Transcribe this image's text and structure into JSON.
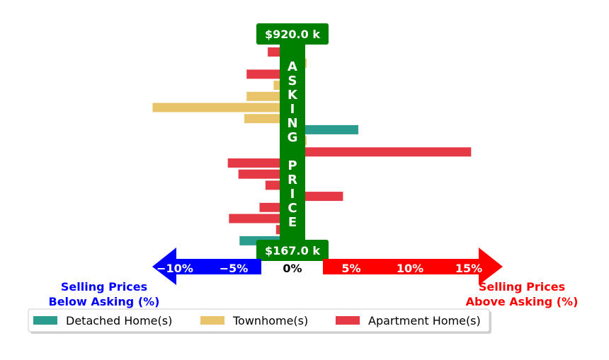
{
  "chart_data": {
    "type": "bar",
    "orientation": "horizontal",
    "x_unit": "%",
    "xlim": [
      -12,
      18
    ],
    "x_ticks": [
      {
        "value": -10,
        "label": "−10%"
      },
      {
        "value": -5,
        "label": "−5%"
      },
      {
        "value": 0,
        "label": "0%"
      },
      {
        "value": 5,
        "label": "5%"
      },
      {
        "value": 10,
        "label": "10%"
      },
      {
        "value": 15,
        "label": "15%"
      }
    ],
    "max_price_label": "$920.0 k",
    "min_price_label": "$167.0 k",
    "center_text": [
      "A",
      "S",
      "K",
      "I",
      "N",
      "G",
      "",
      "P",
      "R",
      "I",
      "C",
      "E"
    ],
    "below_label": [
      "Selling Prices",
      "Below Asking (%)"
    ],
    "above_label": [
      "Selling Prices",
      "Above Asking (%)"
    ],
    "colors": {
      "Detached Home(s)": "#2a9d8f",
      "Townhome(s)": "#e9c46a",
      "Apartment Home(s)": "#e63946",
      "center": "#008000",
      "below_arrow": "#0000ff",
      "above_arrow": "#ff0000",
      "below_text": "#0000ff",
      "above_text": "#ff0000"
    },
    "legend": {
      "placement": "bottom",
      "entries": [
        "Detached Home(s)",
        "Townhome(s)",
        "Apartment Home(s)"
      ]
    },
    "bars": [
      {
        "type": "Apartment Home(s)",
        "value": -2.1
      },
      {
        "type": "Townhome(s)",
        "value": 1.2
      },
      {
        "type": "Apartment Home(s)",
        "value": -3.9
      },
      {
        "type": "Townhome(s)",
        "value": -1.6
      },
      {
        "type": "Townhome(s)",
        "value": -3.9
      },
      {
        "type": "Townhome(s)",
        "value": -11.9
      },
      {
        "type": "Townhome(s)",
        "value": -4.1
      },
      {
        "type": "Detached Home(s)",
        "value": 5.6
      },
      {
        "type": "Townhome(s)",
        "value": 1.2
      },
      {
        "type": "Apartment Home(s)",
        "value": 15.2
      },
      {
        "type": "Apartment Home(s)",
        "value": -5.5
      },
      {
        "type": "Apartment Home(s)",
        "value": -4.6
      },
      {
        "type": "Apartment Home(s)",
        "value": -2.3
      },
      {
        "type": "Apartment Home(s)",
        "value": 4.3
      },
      {
        "type": "Apartment Home(s)",
        "value": -2.8
      },
      {
        "type": "Apartment Home(s)",
        "value": -5.4
      },
      {
        "type": "Apartment Home(s)",
        "value": -1.4
      },
      {
        "type": "Detached Home(s)",
        "value": -4.5
      }
    ]
  }
}
